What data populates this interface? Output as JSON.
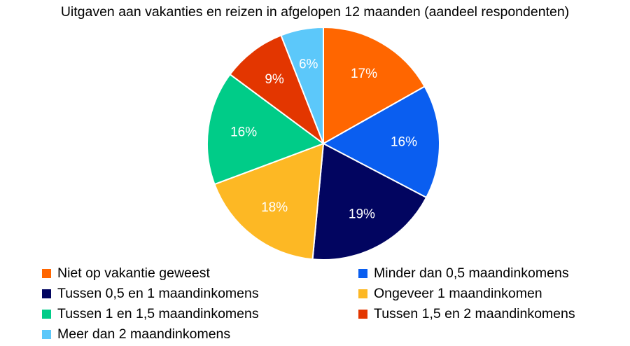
{
  "chart_data": {
    "type": "pie",
    "title": "Uitgaven aan vakanties en reizen in afgelopen 12 maanden (aandeel respondenten)",
    "slices": [
      {
        "label": "Niet op vakantie geweest",
        "value": 17,
        "display": "17%",
        "color": "#FF6600"
      },
      {
        "label": "Minder dan 0,5 maandinkomens",
        "value": 16,
        "display": "16%",
        "color": "#0A5EF0"
      },
      {
        "label": "Tussen 0,5 en 1 maandinkomens",
        "value": 19,
        "display": "19%",
        "color": "#020560"
      },
      {
        "label": "Ongeveer 1 maandinkomen",
        "value": 18,
        "display": "18%",
        "color": "#FDB824"
      },
      {
        "label": "Tussen 1 en 1,5 maandinkomens",
        "value": 16,
        "display": "16%",
        "color": "#00CC88"
      },
      {
        "label": "Tussen 1,5 en 2 maandinkomens",
        "value": 9,
        "display": "9%",
        "color": "#E33600"
      },
      {
        "label": "Meer dan 2 maandinkomens",
        "value": 6,
        "display": "6%",
        "color": "#5CC8FA"
      }
    ],
    "legend": "bottom",
    "start_angle": "12 o'clock",
    "direction": "clockwise"
  }
}
